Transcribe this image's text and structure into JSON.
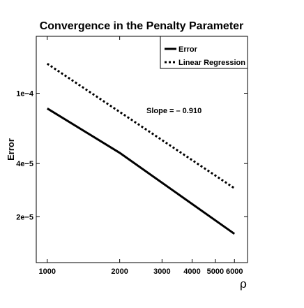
{
  "chart_data": {
    "type": "line",
    "title": "Convergence in the Penalty Parameter",
    "xlabel": "ρ",
    "ylabel": "Error",
    "x_scale": "log",
    "y_scale": "log",
    "xlim": [
      900,
      6800
    ],
    "ylim": [
      1.1e-05,
      0.00021
    ],
    "x_ticks": [
      1000,
      2000,
      3000,
      4000,
      5000,
      6000
    ],
    "x_tick_labels": [
      "1000",
      "2000",
      "3000",
      "4000",
      "5000",
      "6000"
    ],
    "y_ticks": [
      2e-05,
      4e-05,
      0.0001
    ],
    "y_tick_labels": [
      "2e−5",
      "4e−5",
      "1e−4"
    ],
    "grid": false,
    "legend_position": "top-right",
    "series": [
      {
        "name": "Error",
        "line_style": "solid",
        "x": [
          1000,
          2000,
          6000
        ],
        "y": [
          8.2e-05,
          4.6e-05,
          1.6e-05
        ]
      },
      {
        "name": "Linear Regression",
        "line_style": "dotted",
        "x": [
          1000,
          6000
        ],
        "y": [
          0.000147,
          2.9e-05
        ]
      }
    ],
    "annotation": "Slope = – 0.910"
  }
}
